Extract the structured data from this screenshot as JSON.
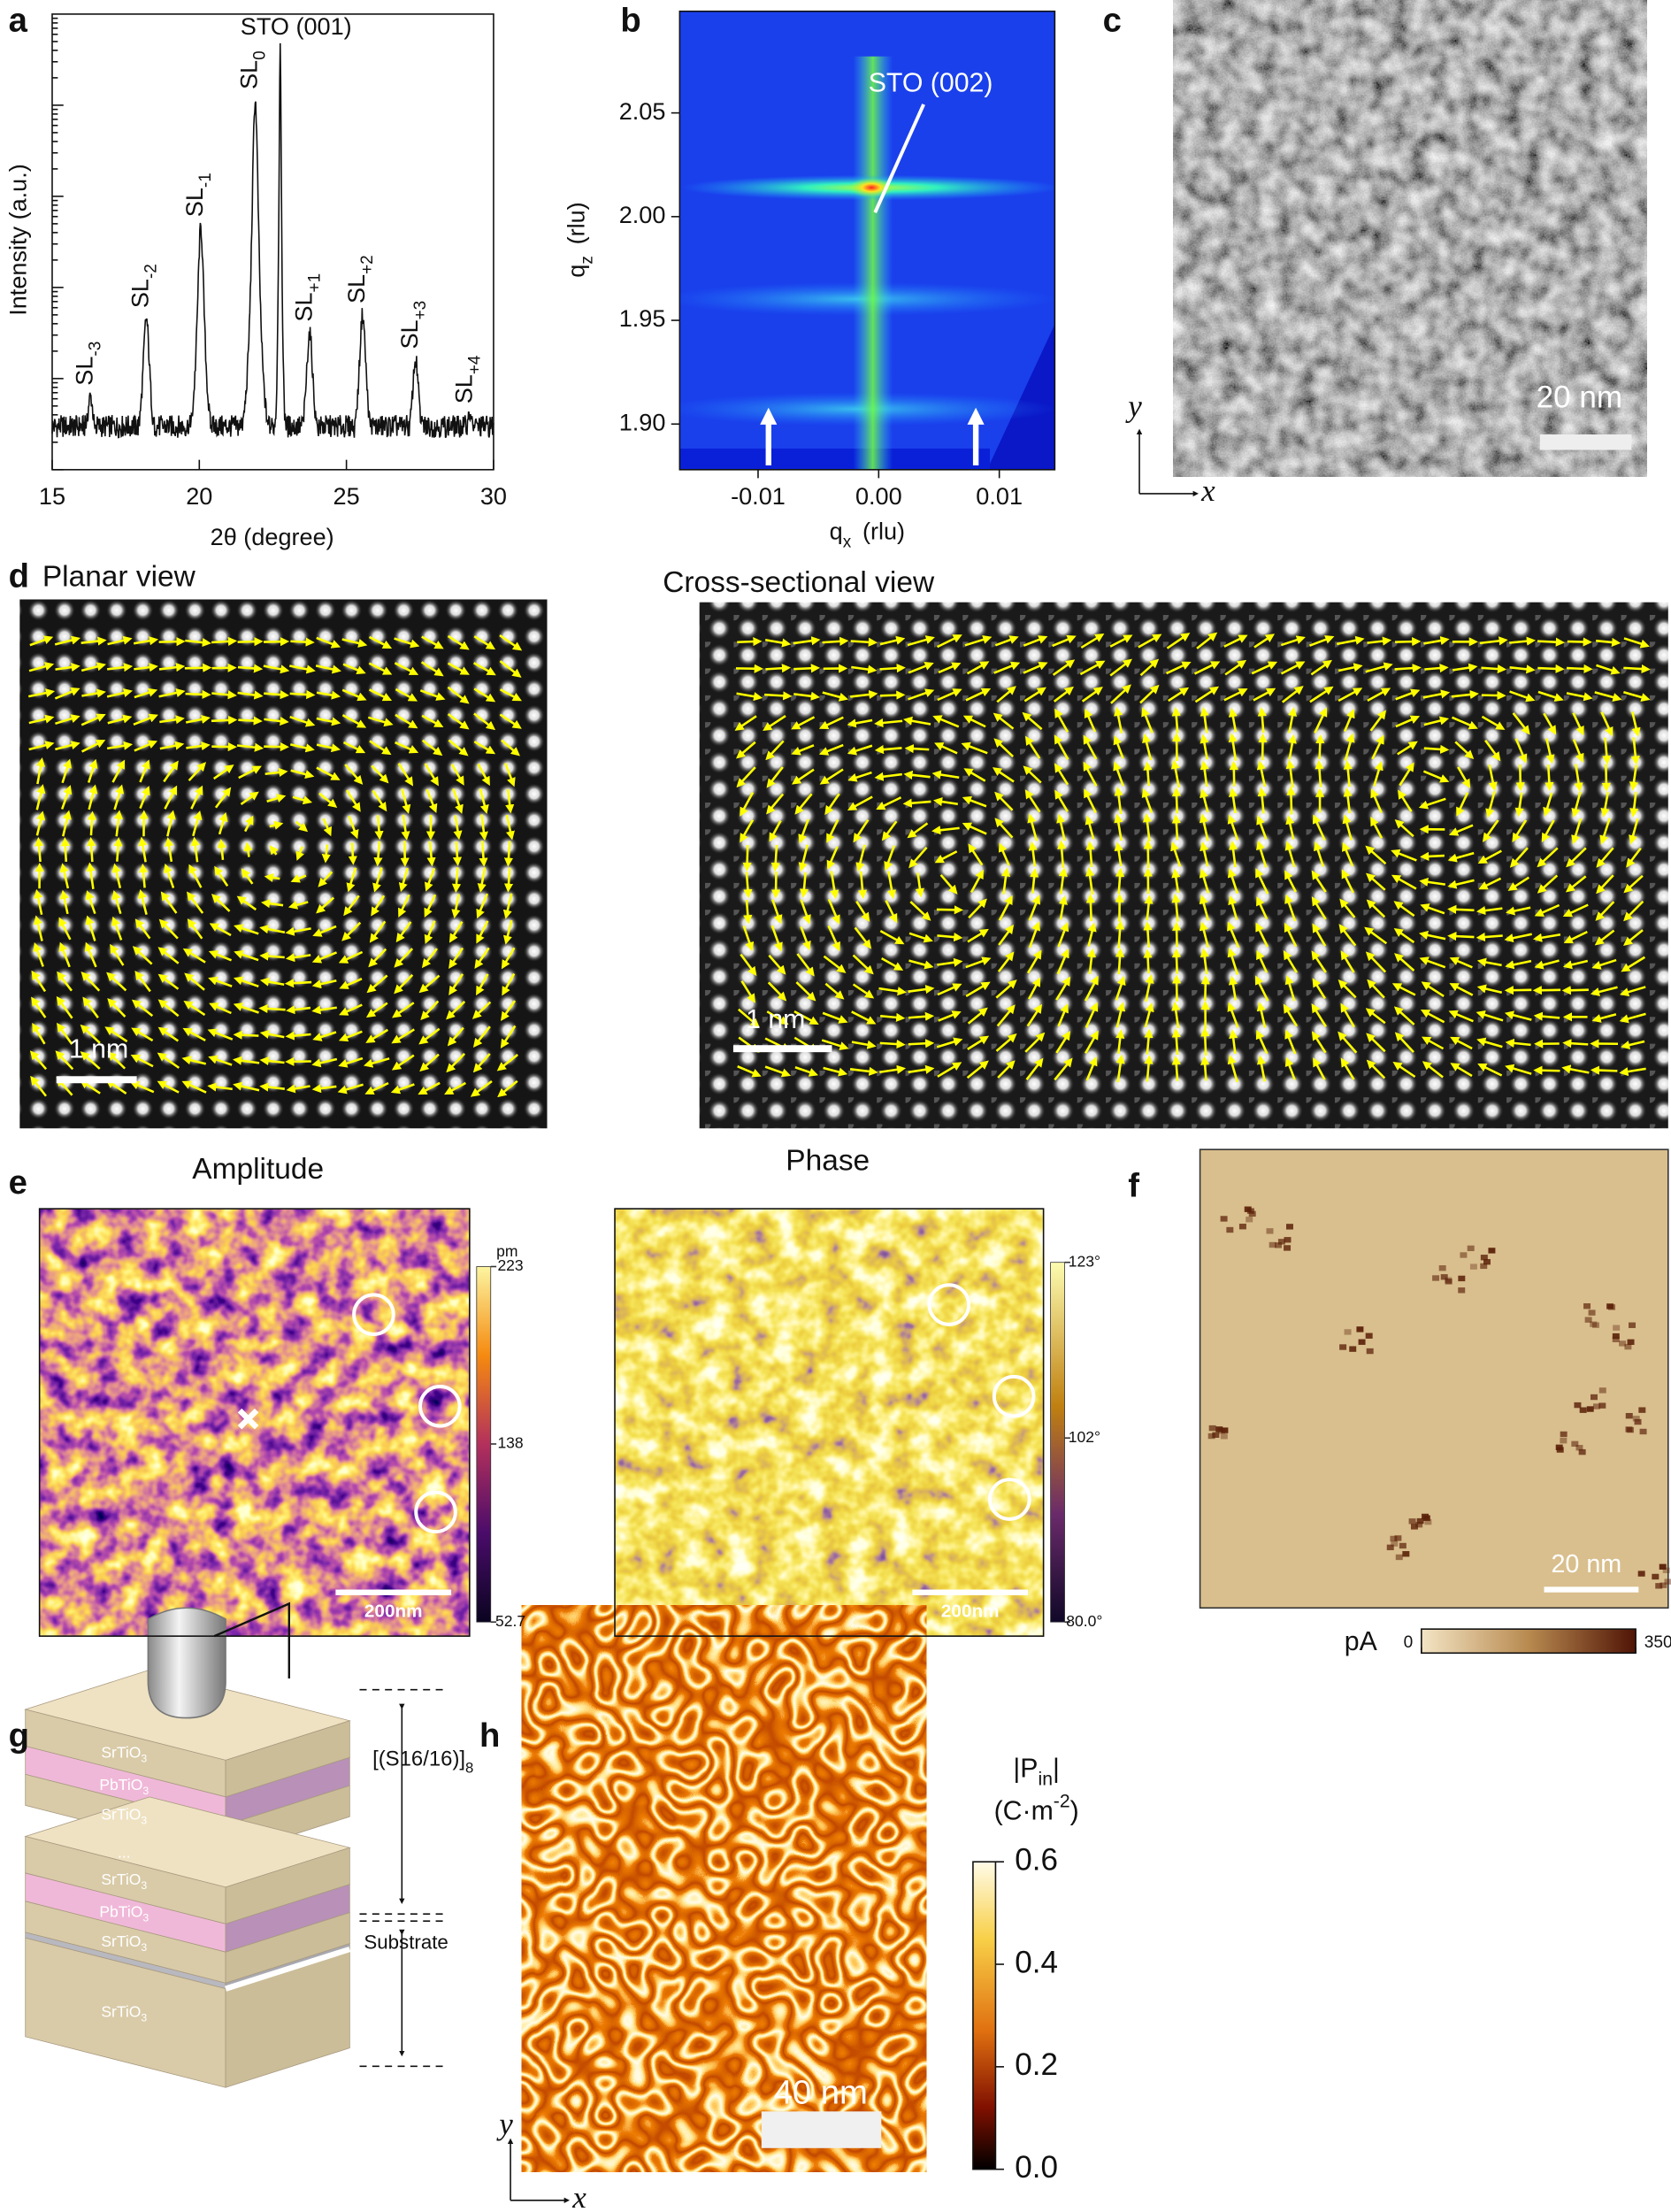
{
  "panel_a": {
    "letter": "a",
    "type": "line",
    "y_label": "Intensity (a.u.)",
    "x_label": "2θ (degree)",
    "xlim": [
      15,
      30
    ],
    "xticks": [
      15,
      20,
      25,
      30
    ],
    "log_y": true,
    "substrate_peak": {
      "label": "STO (001)",
      "position": 22.75,
      "height": 0.92
    },
    "peaks": [
      {
        "label": "SL",
        "sub": "-3",
        "position": 16.3,
        "height": 0.16
      },
      {
        "label": "SL",
        "sub": "-2",
        "position": 18.2,
        "height": 0.33
      },
      {
        "label": "SL",
        "sub": "-1",
        "position": 20.05,
        "height": 0.53
      },
      {
        "label": "SL",
        "sub": "0",
        "position": 21.9,
        "height": 0.81
      },
      {
        "label": "SL",
        "sub": "+1",
        "position": 23.75,
        "height": 0.3
      },
      {
        "label": "SL",
        "sub": "+2",
        "position": 25.55,
        "height": 0.34
      },
      {
        "label": "SL",
        "sub": "+3",
        "position": 27.35,
        "height": 0.24
      },
      {
        "label": "SL",
        "sub": "+4",
        "position": 29.2,
        "height": 0.12
      }
    ]
  },
  "panel_b": {
    "letter": "b",
    "y_label": "q",
    "y_sub": "z",
    "y_unit": "(rlu)",
    "x_label": "q",
    "x_sub": "x",
    "x_unit": "(rlu)",
    "xlim": [
      -0.0165,
      0.0146
    ],
    "xticks": [
      {
        "value": -0.01,
        "label": "-0.01"
      },
      {
        "value": 0,
        "label": "0.00"
      },
      {
        "value": 0.01,
        "label": "0.01"
      }
    ],
    "ylim": [
      1.878,
      2.099
    ],
    "yticks": [
      {
        "value": 1.9,
        "label": "1.90"
      },
      {
        "value": 1.95,
        "label": "1.95"
      },
      {
        "value": 2,
        "label": "2.00"
      },
      {
        "value": 2.05,
        "label": "2.05"
      }
    ],
    "annotation": {
      "label": "STO (002)",
      "qx": -0.0003,
      "qz": 2.002
    }
  },
  "panel_c": {
    "letter": "c",
    "scale_bar": "20 nm",
    "y_axis": "y",
    "x_axis": "x"
  },
  "panel_d": {
    "letter": "d",
    "views": [
      {
        "title": "Planar view",
        "scale_bar": "1 nm"
      },
      {
        "title": "Cross-sectional view",
        "scale_bar": "1 nm"
      }
    ]
  },
  "panel_e": {
    "letter": "e",
    "maps": [
      {
        "title": "Amplitude",
        "unit": "pm",
        "clim": [
          52.7,
          223
        ],
        "cticks": [
          223,
          138,
          52.7
        ],
        "scale_bar": "200nm"
      },
      {
        "title": "Phase",
        "clim": [
          80,
          123
        ],
        "cticks": [
          {
            "value": 123,
            "label": "123°"
          },
          {
            "value": 102,
            "label": "102°"
          },
          {
            "value": 80,
            "label": "80.0°"
          }
        ],
        "scale_bar": "200nm"
      }
    ]
  },
  "panel_f": {
    "letter": "f",
    "scale_bar": "20 nm",
    "colorbar_label": "pA",
    "clim": [
      0,
      350
    ],
    "cticks": [
      0,
      350
    ]
  },
  "panel_g": {
    "letter": "g",
    "layers": [
      {
        "text": "SrTiO",
        "sub": "3"
      },
      {
        "text": "PbTiO",
        "sub": "3"
      },
      {
        "text": "SrTiO",
        "sub": "3"
      },
      {
        "text": "..."
      },
      {
        "text": "SrTiO",
        "sub": "3"
      },
      {
        "text": "PbTiO",
        "sub": "3"
      },
      {
        "text": "SrTiO",
        "sub": "3"
      },
      {
        "text": "SrTiO",
        "sub": "3"
      }
    ],
    "period_label": {
      "text": "[(S16/16)]",
      "sub": "8"
    },
    "substrate_label": "Substrate"
  },
  "panel_h": {
    "letter": "h",
    "colorbar_title": {
      "text": "|P",
      "sub": "in",
      "tail": "|"
    },
    "colorbar_unit": {
      "text": "(C·m",
      "sup": "-2",
      "tail": ")"
    },
    "clim": [
      0,
      0.6
    ],
    "cticks": [
      {
        "value": 0,
        "label": "0.0"
      },
      {
        "value": 0.2,
        "label": "0.2"
      },
      {
        "value": 0.4,
        "label": "0.4"
      },
      {
        "value": 0.6,
        "label": "0.6"
      }
    ],
    "scale_bar": "40 nm",
    "y_axis": "y",
    "x_axis": "x"
  }
}
